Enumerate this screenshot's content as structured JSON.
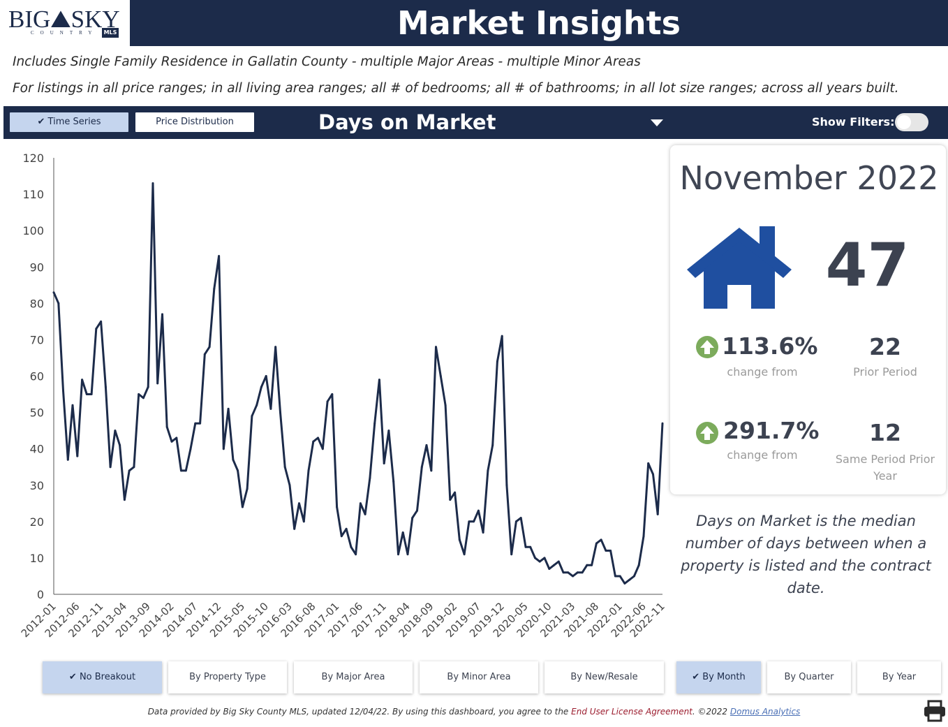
{
  "logo": {
    "text": "BIG⛰SKY",
    "country": "COUNTRY",
    "mls": "MLS"
  },
  "header": {
    "title": "Market Insights"
  },
  "description": {
    "line1": "Includes Single Family Residence in Gallatin County - multiple Major Areas - multiple Minor Areas",
    "line2": "For listings in all price ranges; in all living area ranges; all # of bedrooms; all # of bathrooms; in all lot size ranges; across all years built."
  },
  "toolbar": {
    "time_series_label": "✔ Time Series",
    "price_distribution_label": "Price Distribution",
    "metric_title": "Days on Market",
    "show_filters_label": "Show Filters:"
  },
  "panel": {
    "period": "November 2022",
    "value": "47",
    "change1_pct": "113.6%",
    "change1_label": "change from",
    "prior_value": "22",
    "prior_label": "Prior Period",
    "change2_pct": "291.7%",
    "change2_label": "change from",
    "prior_year_value": "12",
    "prior_year_label": "Same Period Prior Year",
    "definition": "Days on Market is the median number of days between when a property is listed and the contract date."
  },
  "breakout_buttons": [
    {
      "label": "✔ No Breakout",
      "active": true
    },
    {
      "label": "By Property Type",
      "active": false
    },
    {
      "label": "By Major Area",
      "active": false
    },
    {
      "label": "By Minor Area",
      "active": false
    },
    {
      "label": "By New/Resale",
      "active": false
    },
    {
      "label": "✔ By Month",
      "active": true
    },
    {
      "label": "By Quarter",
      "active": false
    },
    {
      "label": "By Year",
      "active": false
    }
  ],
  "footer": {
    "text1": "Data provided by Big Sky County MLS, updated 12/04/22.  By using this dashboard, you agree to the ",
    "link1": "End User License Agreement",
    "text2": ".  ©2022 ",
    "link2": "Domus Analytics"
  },
  "colors": {
    "navy": "#1c2b4a",
    "house_blue": "#1f4fa0",
    "up_green": "#7cab5c",
    "active_button": "#c5d5ee"
  },
  "icons": {
    "house": "house-icon",
    "up": "arrow-up-circle-icon",
    "print": "printer-icon",
    "check": "checkmark-icon",
    "caret": "caret-down-icon"
  },
  "chart_data": {
    "type": "line",
    "title": "",
    "xlabel": "",
    "ylabel": "",
    "ylim": [
      0,
      120
    ],
    "yticks": [
      0,
      10,
      20,
      30,
      40,
      50,
      60,
      70,
      80,
      90,
      100,
      110,
      120
    ],
    "x_tick_labels": [
      "2012-01",
      "2012-06",
      "2012-11",
      "2013-04",
      "2013-09",
      "2014-02",
      "2014-07",
      "2014-12",
      "2015-05",
      "2015-10",
      "2016-03",
      "2016-08",
      "2017-01",
      "2017-06",
      "2017-11",
      "2018-04",
      "2018-09",
      "2019-02",
      "2019-07",
      "2019-12",
      "2020-05",
      "2020-10",
      "2021-03",
      "2021-08",
      "2022-01",
      "2022-06",
      "2022-11"
    ],
    "x_start": "2012-01",
    "x_end": "2022-11",
    "grid": false,
    "series": [
      {
        "color": "#1c2b4a",
        "values": [
          83,
          80,
          56,
          37,
          52,
          38,
          59,
          55,
          55,
          73,
          75,
          57,
          35,
          45,
          41,
          26,
          34,
          35,
          55,
          54,
          57,
          113,
          58,
          77,
          46,
          42,
          43,
          34,
          34,
          40,
          47,
          47,
          66,
          68,
          84,
          93,
          40,
          51,
          37,
          34,
          24,
          29,
          49,
          52,
          57,
          60,
          51,
          68,
          50,
          35,
          30,
          18,
          25,
          20,
          34,
          42,
          43,
          40,
          53,
          55,
          24,
          16,
          18,
          13,
          11,
          25,
          22,
          32,
          47,
          59,
          36,
          45,
          31,
          11,
          17,
          11,
          21,
          23,
          35,
          41,
          34,
          68,
          60,
          52,
          26,
          28,
          15,
          11,
          20,
          20,
          23,
          17,
          34,
          41,
          64,
          71,
          30,
          11,
          20,
          21,
          13,
          13,
          10,
          9,
          10,
          7,
          8,
          9,
          6,
          6,
          5,
          6,
          6,
          8,
          8,
          14,
          15,
          12,
          12,
          5,
          5,
          3,
          4,
          5,
          8,
          16,
          36,
          33,
          22,
          47
        ]
      }
    ]
  }
}
